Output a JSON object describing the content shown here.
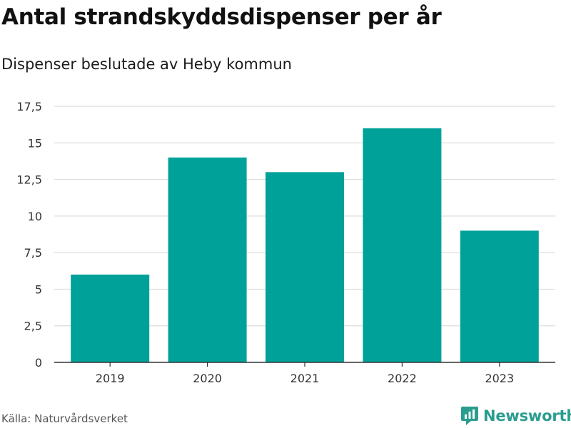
{
  "header": {
    "title": "Antal strandskyddsdispenser per år",
    "subtitle": "Dispenser beslutade av Heby kommun"
  },
  "footer": {
    "source": "Källa: Naturvårdsverket",
    "brand": "Newsworthy"
  },
  "colors": {
    "bar": "#00a199",
    "grid": "#dddddd",
    "axis": "#333333",
    "brand": "#2a9d8f"
  },
  "chart_data": {
    "type": "bar",
    "title": "Antal strandskyddsdispenser per år",
    "subtitle": "Dispenser beslutade av Heby kommun",
    "xlabel": "",
    "ylabel": "",
    "categories": [
      "2019",
      "2020",
      "2021",
      "2022",
      "2023"
    ],
    "values": [
      6,
      14,
      13,
      16,
      9
    ],
    "ylim": [
      0,
      17.5
    ],
    "yticks": [
      0,
      2.5,
      5,
      7.5,
      10,
      12.5,
      15,
      17.5
    ],
    "ytick_labels": [
      "0",
      "2,5",
      "5",
      "7,5",
      "10",
      "12,5",
      "15",
      "17,5"
    ],
    "grid": true,
    "legend": "none"
  }
}
